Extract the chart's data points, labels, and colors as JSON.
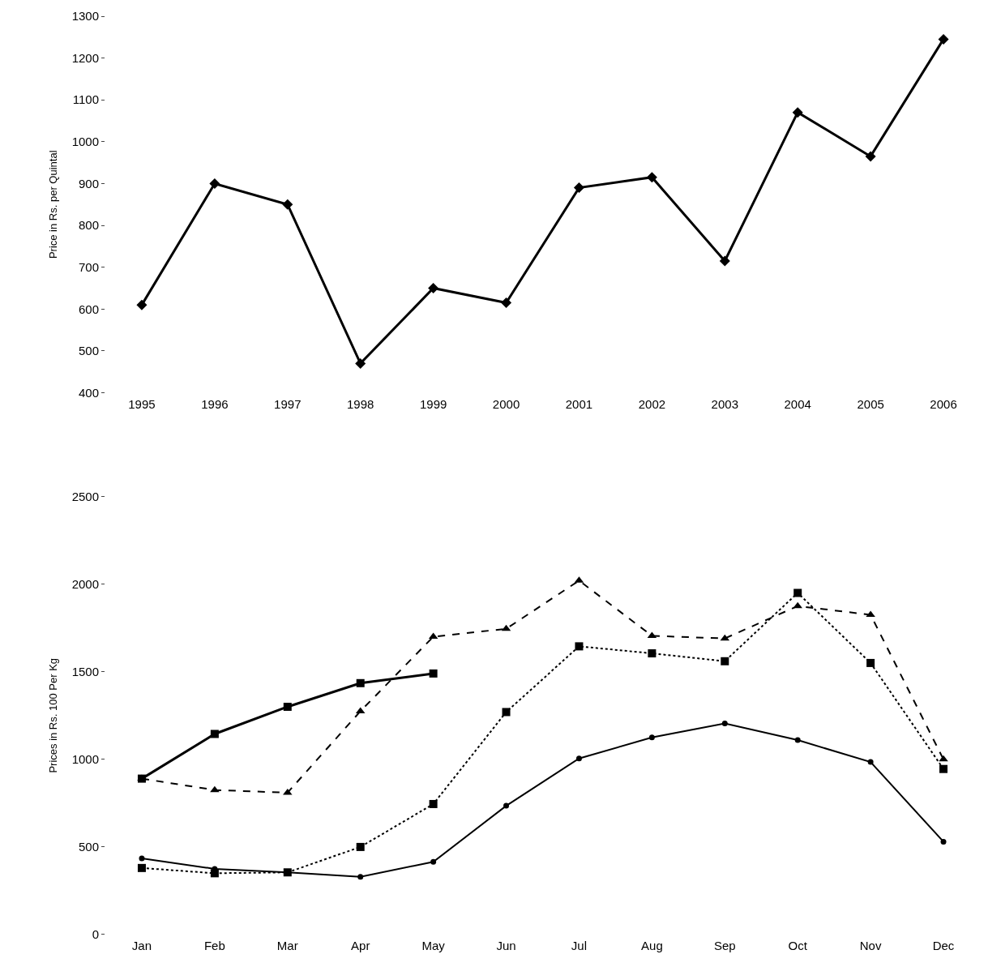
{
  "chart_data": [
    {
      "type": "line",
      "ylabel": "Price in Rs. per Quintal",
      "categories": [
        "1995",
        "1996",
        "1997",
        "1998",
        "1999",
        "2000",
        "2001",
        "2002",
        "2003",
        "2004",
        "2005",
        "2006"
      ],
      "series": [
        {
          "color": "#000000",
          "marker": "diamond",
          "line_style": "solid",
          "values": [
            610,
            900,
            850,
            470,
            650,
            615,
            890,
            915,
            715,
            1070,
            965,
            1245
          ]
        }
      ],
      "ylim": [
        400,
        1300
      ],
      "yticks": [
        400,
        500,
        600,
        700,
        800,
        900,
        1000,
        1100,
        1200,
        1300
      ],
      "grid": false
    },
    {
      "type": "line",
      "ylabel": "Prices in Rs. 100 Per Kg",
      "categories": [
        "Jan",
        "Feb",
        "Mar",
        "Apr",
        "May",
        "Jun",
        "Jul",
        "Aug",
        "Sep",
        "Oct",
        "Nov",
        "Dec"
      ],
      "series": [
        {
          "color": "#000000",
          "marker": "square",
          "line_style": "solid",
          "values": [
            890,
            1145,
            1300,
            1435,
            1490,
            null,
            null,
            null,
            null,
            null,
            null,
            null
          ]
        },
        {
          "color": "#000000",
          "marker": "triangle",
          "line_style": "dashed",
          "values": [
            890,
            825,
            810,
            1275,
            1700,
            1745,
            2020,
            1705,
            1690,
            1875,
            1825,
            1000
          ]
        },
        {
          "color": "#000000",
          "marker": "square",
          "line_style": "dotted",
          "values": [
            380,
            350,
            355,
            500,
            745,
            1270,
            1645,
            1605,
            1560,
            1950,
            1550,
            945
          ]
        },
        {
          "color": "#000000",
          "marker": "circle",
          "line_style": "solid",
          "values": [
            435,
            375,
            355,
            330,
            415,
            735,
            1005,
            1125,
            1205,
            1110,
            985,
            530
          ]
        }
      ],
      "ylim": [
        0,
        2500
      ],
      "yticks": [
        0,
        500,
        1000,
        1500,
        2000,
        2500
      ],
      "grid": false
    }
  ]
}
